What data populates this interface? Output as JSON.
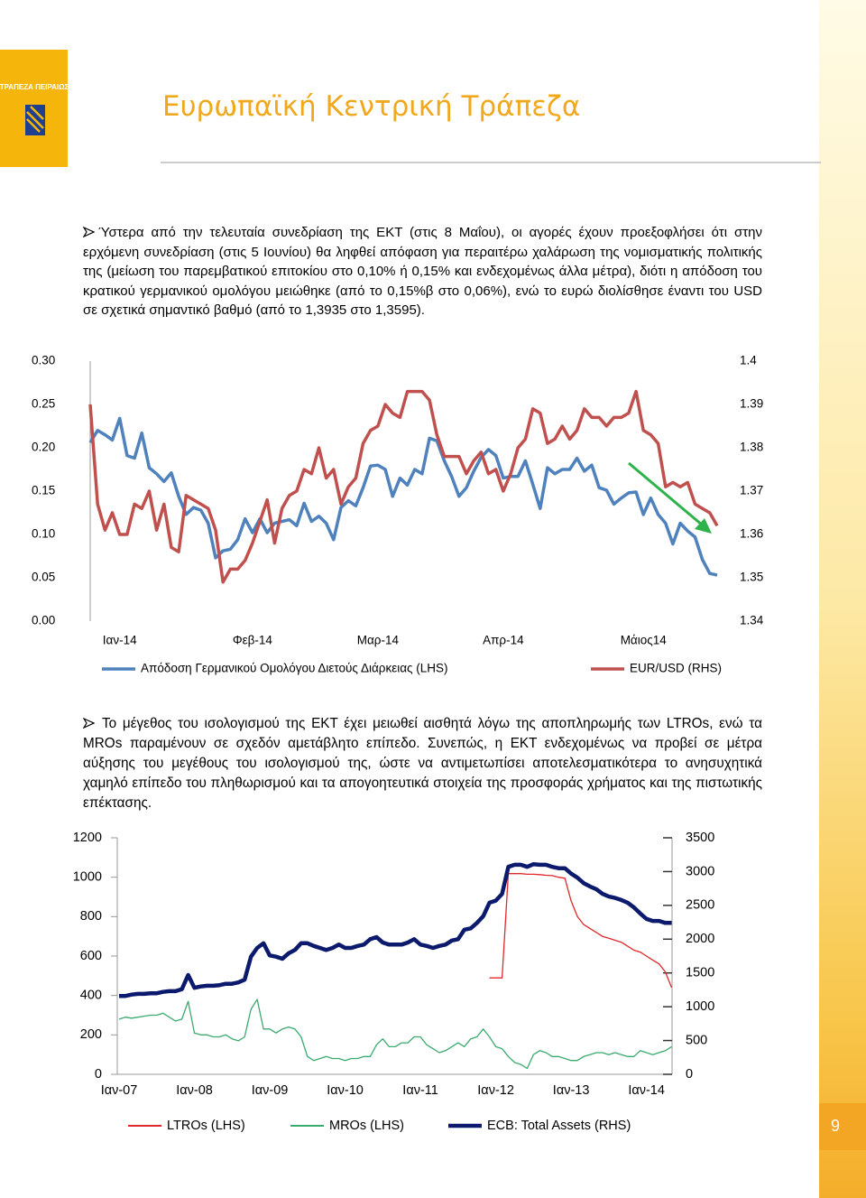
{
  "header": {
    "bank": "ΤΡΑΠΕΖΑ ΠΕΙΡΑΙΩΣ",
    "title": "Ευρωπαϊκή Κεντρική Τράπεζα"
  },
  "paragraphs": [
    "Ύστερα από την τελευταία συνεδρίαση της ΕΚΤ (στις 8 Μαΐου), οι αγορές έχουν προεξοφλήσει ότι στην ερχόμενη συνεδρίαση (στις 5 Ιουνίου) θα ληφθεί απόφαση για περαιτέρω χαλάρωση της νομισματικής πολιτικής της (μείωση του παρεμβατικού επιτοκίου στο 0,10% ή 0,15% και ενδεχομένως άλλα μέτρα), διότι η απόδοση του κρατικού γερμανικού ομολόγου  μειώθηκε (από το 0,15%β στο 0,06%), ενώ το ευρώ διολίσθησε έναντι του USD σε σχετικά σημαντικό βαθμό (από το 1,3935 στο 1,3595).",
    "Το μέγεθος του ισολογισμού της ΕΚΤ έχει μειωθεί αισθητά λόγω της αποπληρωμής των LTROs, ενώ τα MROs παραμένουν σε σχεδόν αμετάβλητο επίπεδο. Συνεπώς, η ΕΚΤ ενδεχομένως να προβεί σε μέτρα αύξησης του μεγέθους του ισολογισμού της, ώστε να αντιμετωπίσει αποτελεσματικότερα το ανησυχητικά χαμηλό επίπεδο του πληθωρισμού και τα απογοητευτικά στοιχεία της προσφοράς χρήματος και της πιστωτικής επέκτασης."
  ],
  "page_number": "9",
  "chart_data": [
    {
      "type": "line",
      "categories": [
        null,
        null,
        null,
        null,
        "Ιαν-14",
        null,
        null,
        null,
        null,
        null,
        null,
        null,
        null,
        null,
        null,
        null,
        null,
        null,
        null,
        null,
        null,
        null,
        "Φεβ-14",
        null,
        null,
        null,
        null,
        null,
        null,
        null,
        null,
        null,
        null,
        null,
        null,
        null,
        null,
        null,
        null,
        "Μαρ-14",
        null,
        null,
        null,
        null,
        null,
        null,
        null,
        null,
        null,
        null,
        null,
        null,
        null,
        null,
        null,
        null,
        "Απρ-14",
        null,
        null,
        null,
        null,
        null,
        null,
        null,
        null,
        null,
        null,
        null,
        null,
        null,
        null,
        null,
        null,
        null,
        null,
        "Μάιος14",
        null,
        null,
        null,
        null,
        null,
        null,
        null,
        null,
        null,
        null
      ],
      "series": [
        {
          "name": "Απόδοση Γερμανικού Ομολόγου Διετούς Διάρκειας (LHS)",
          "color": "#4f81bd",
          "values": [
            0.206,
            0.22,
            0.215,
            0.209,
            0.234,
            0.191,
            0.188,
            0.217,
            0.177,
            0.17,
            0.161,
            0.171,
            0.144,
            0.123,
            0.131,
            0.128,
            0.113,
            0.073,
            0.081,
            0.083,
            0.094,
            0.118,
            0.102,
            0.118,
            0.102,
            0.113,
            0.115,
            0.117,
            0.11,
            0.136,
            0.115,
            0.121,
            0.113,
            0.094,
            0.131,
            0.139,
            0.133,
            0.154,
            0.179,
            0.18,
            0.175,
            0.144,
            0.165,
            0.157,
            0.175,
            0.17,
            0.211,
            0.208,
            0.185,
            0.167,
            0.144,
            0.154,
            0.173,
            0.189,
            0.198,
            0.191,
            0.165,
            0.167,
            0.167,
            0.185,
            0.158,
            0.13,
            0.177,
            0.17,
            0.175,
            0.175,
            0.188,
            0.173,
            0.18,
            0.154,
            0.151,
            0.135,
            0.142,
            0.148,
            0.149,
            0.123,
            0.142,
            0.123,
            0.113,
            0.089,
            0.113,
            0.104,
            0.097,
            0.071,
            0.055,
            0.053
          ]
        },
        {
          "name": "EUR/USD (RHS)",
          "color": "#c0504d",
          "axis": "y2",
          "values": [
            1.39,
            1.367,
            1.361,
            1.365,
            1.36,
            1.36,
            1.367,
            1.366,
            1.37,
            1.361,
            1.367,
            1.357,
            1.356,
            1.369,
            1.368,
            1.367,
            1.366,
            1.361,
            1.349,
            1.352,
            1.352,
            1.354,
            1.358,
            1.363,
            1.368,
            1.358,
            1.366,
            1.369,
            1.37,
            1.375,
            1.374,
            1.38,
            1.373,
            1.375,
            1.367,
            1.371,
            1.373,
            1.381,
            1.384,
            1.385,
            1.39,
            1.388,
            1.387,
            1.393,
            1.393,
            1.393,
            1.391,
            1.383,
            1.378,
            1.378,
            1.378,
            1.374,
            1.377,
            1.379,
            1.374,
            1.375,
            1.37,
            1.374,
            1.38,
            1.382,
            1.389,
            1.388,
            1.381,
            1.382,
            1.385,
            1.382,
            1.384,
            1.389,
            1.387,
            1.387,
            1.385,
            1.387,
            1.387,
            1.388,
            1.393,
            1.384,
            1.383,
            1.381,
            1.371,
            1.372,
            1.371,
            1.372,
            1.367,
            1.366,
            1.365,
            1.362
          ]
        }
      ],
      "ylim": [
        0,
        0.3
      ],
      "yticks": [
        {
          "value": 0.3,
          "label": "0.30"
        },
        0.25,
        {
          "value": 0.2,
          "label": "0.20"
        },
        0.15,
        {
          "value": 0.1,
          "label": "0.10"
        },
        0.05,
        {
          "value": 0,
          "label": "0.00"
        }
      ],
      "y2lim": [
        1.34,
        1.4
      ],
      "y2ticks": [
        1.4,
        1.39,
        1.38,
        1.37,
        1.36,
        1.35,
        1.34
      ],
      "legend": "bottom"
    },
    {
      "type": "line",
      "categories": [
        "Ιαν-07",
        null,
        null,
        null,
        null,
        null,
        null,
        null,
        null,
        null,
        null,
        null,
        "Ιαν-08",
        null,
        null,
        null,
        null,
        null,
        null,
        null,
        null,
        null,
        null,
        null,
        "Ιαν-09",
        null,
        null,
        null,
        null,
        null,
        null,
        null,
        null,
        null,
        null,
        null,
        "Ιαν-10",
        null,
        null,
        null,
        null,
        null,
        null,
        null,
        null,
        null,
        null,
        null,
        "Ιαν-11",
        null,
        null,
        null,
        null,
        null,
        null,
        null,
        null,
        null,
        null,
        null,
        "Ιαν-12",
        null,
        null,
        null,
        null,
        null,
        null,
        null,
        null,
        null,
        null,
        null,
        "Ιαν-13",
        null,
        null,
        null,
        null,
        null,
        null,
        null,
        null,
        null,
        null,
        null,
        "Ιαν-14",
        null,
        null,
        null,
        null
      ],
      "series": [
        {
          "name": "LTROs (LHS)",
          "color": "#e0282a",
          "values": [
            null,
            null,
            null,
            null,
            null,
            null,
            null,
            null,
            null,
            null,
            null,
            null,
            null,
            null,
            null,
            null,
            null,
            null,
            null,
            null,
            null,
            null,
            null,
            null,
            null,
            null,
            null,
            null,
            null,
            null,
            null,
            null,
            null,
            null,
            null,
            null,
            null,
            null,
            null,
            null,
            null,
            null,
            null,
            null,
            null,
            null,
            null,
            null,
            null,
            null,
            null,
            null,
            null,
            null,
            null,
            null,
            null,
            null,
            null,
            489,
            489,
            489,
            1018,
            1018,
            1018,
            1015,
            1015,
            1013,
            1010,
            1008,
            1000,
            995,
            880,
            800,
            760,
            740,
            720,
            700,
            690,
            680,
            670,
            650,
            630,
            620,
            600,
            580,
            560,
            520,
            440
          ]
        },
        {
          "name": "MROs (LHS)",
          "color": "#3aaa6f",
          "values": [
            280,
            290,
            285,
            290,
            295,
            300,
            300,
            310,
            290,
            270,
            280,
            370,
            210,
            200,
            200,
            190,
            190,
            200,
            180,
            170,
            190,
            330,
            380,
            230,
            230,
            210,
            230,
            240,
            230,
            190,
            90,
            70,
            80,
            90,
            80,
            80,
            70,
            80,
            80,
            90,
            90,
            150,
            180,
            140,
            140,
            160,
            160,
            190,
            190,
            150,
            130,
            110,
            120,
            140,
            160,
            140,
            180,
            190,
            230,
            190,
            140,
            130,
            90,
            60,
            50,
            30,
            100,
            120,
            110,
            90,
            90,
            80,
            70,
            70,
            90,
            100,
            110,
            110,
            100,
            110,
            100,
            90,
            90,
            120,
            110,
            100,
            110,
            120,
            140
          ]
        },
        {
          "name": "ECB: Total Assets (RHS)",
          "color": "#0c1a6e",
          "axis": "y2",
          "values": [
            1160,
            1160,
            1180,
            1190,
            1190,
            1200,
            1200,
            1220,
            1230,
            1230,
            1260,
            1470,
            1280,
            1300,
            1310,
            1310,
            1320,
            1340,
            1340,
            1360,
            1400,
            1740,
            1870,
            1940,
            1760,
            1740,
            1710,
            1790,
            1840,
            1940,
            1940,
            1900,
            1870,
            1840,
            1870,
            1920,
            1870,
            1870,
            1900,
            1920,
            2000,
            2030,
            1950,
            1920,
            1920,
            1920,
            1950,
            2000,
            1920,
            1900,
            1870,
            1900,
            1920,
            1980,
            2000,
            2140,
            2160,
            2240,
            2340,
            2540,
            2570,
            2670,
            3070,
            3100,
            3100,
            3070,
            3110,
            3100,
            3100,
            3070,
            3050,
            3050,
            2970,
            2910,
            2830,
            2780,
            2740,
            2670,
            2630,
            2610,
            2580,
            2540,
            2470,
            2380,
            2300,
            2270,
            2270,
            2240,
            2240
          ]
        }
      ],
      "ylim": [
        0,
        1200
      ],
      "yticks": [
        1200,
        1000,
        800,
        600,
        400,
        200,
        0
      ],
      "y2lim": [
        0,
        3500
      ],
      "y2ticks": [
        3500,
        3000,
        2500,
        2000,
        1500,
        1000,
        500,
        0
      ],
      "legend": "bottom"
    }
  ]
}
